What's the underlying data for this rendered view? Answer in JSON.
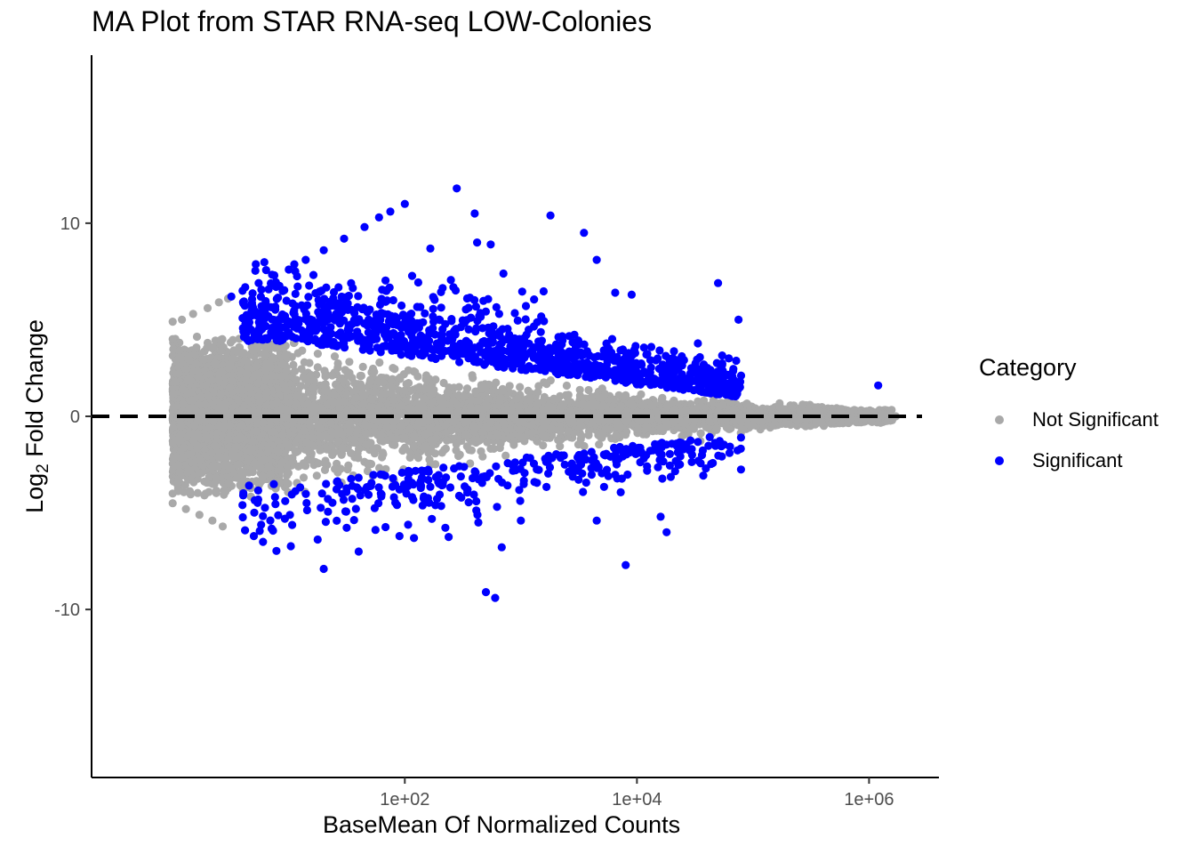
{
  "chart_data": {
    "type": "scatter",
    "title": "MA Plot from STAR RNA-seq LOW-Colonies",
    "xlabel": "BaseMean Of Normalized Counts",
    "ylabel_base": "Log",
    "ylabel_sub": "2",
    "ylabel_rest": " Fold Change",
    "x_scale": "log10",
    "xlim": [
      0.2,
      4000000
    ],
    "ylim": [
      -18.7,
      18.7
    ],
    "x_ticks": [
      100,
      10000,
      1000000
    ],
    "x_tick_labels": [
      "1e+02",
      "1e+04",
      "1e+06"
    ],
    "y_ticks": [
      -10,
      0,
      10
    ],
    "y_tick_labels": [
      "-10",
      "0",
      "10"
    ],
    "hline": {
      "y": 0,
      "style": "dashed",
      "color": "#000000"
    },
    "grid": false,
    "legend_position": "right",
    "legend_title": "Category",
    "series": [
      {
        "name": "Not Significant",
        "color": "#a9a9a9",
        "summary": "dense cloud, roughly |y| < 4 at low counts narrowing to |y| < 0.5 above 1e+05",
        "points": [
          [
            1.0,
            4.9
          ],
          [
            1.2,
            5.0
          ],
          [
            1.5,
            5.3
          ],
          [
            2.0,
            5.6
          ],
          [
            2.5,
            5.9
          ],
          [
            3.0,
            6.1
          ],
          [
            1.0,
            -4.5
          ],
          [
            1.3,
            -4.8
          ],
          [
            1.7,
            -5.1
          ],
          [
            2.2,
            -5.4
          ],
          [
            2.7,
            -5.7
          ],
          [
            1.0,
            4.0
          ],
          [
            1.0,
            -4.0
          ],
          [
            2.0,
            3.8
          ],
          [
            3.0,
            -3.5
          ],
          [
            5.0,
            3.4
          ],
          [
            4.0,
            -3.4
          ],
          [
            200000,
            0.2
          ],
          [
            300000,
            0.3
          ],
          [
            400000,
            0.2
          ],
          [
            600000,
            0.1
          ],
          [
            900000,
            0.1
          ],
          [
            1300000,
            0.1
          ],
          [
            1700000,
            0.0
          ],
          [
            250000,
            -0.2
          ],
          [
            350000,
            -0.3
          ],
          [
            500000,
            -0.2
          ],
          [
            700000,
            -0.1
          ]
        ]
      },
      {
        "name": "Significant",
        "color": "#0000ff",
        "summary": "points above and below the grey cloud, most between 10 and 1e+05 counts",
        "points": [
          [
            3.2,
            6.2
          ],
          [
            4.0,
            6.5
          ],
          [
            5.5,
            6.9
          ],
          [
            7.5,
            7.3
          ],
          [
            10,
            7.6
          ],
          [
            14,
            8.1
          ],
          [
            20,
            8.6
          ],
          [
            30,
            9.2
          ],
          [
            45,
            9.8
          ],
          [
            60,
            10.3
          ],
          [
            75,
            10.6
          ],
          [
            100,
            11.0
          ],
          [
            4.2,
            -5.9
          ],
          [
            5.0,
            -6.2
          ],
          [
            6.0,
            -6.5
          ],
          [
            280,
            11.8
          ],
          [
            400,
            10.5
          ],
          [
            1800,
            10.4
          ],
          [
            3500,
            9.5
          ],
          [
            420,
            9.0
          ],
          [
            550,
            8.9
          ],
          [
            4500,
            8.1
          ],
          [
            6500,
            6.4
          ],
          [
            9000,
            6.3
          ],
          [
            50000,
            6.9
          ],
          [
            75000,
            5.0
          ],
          [
            1200000,
            1.6
          ],
          [
            16000,
            -5.2
          ],
          [
            8000,
            -7.7
          ],
          [
            600,
            -9.4
          ],
          [
            500,
            -9.1
          ],
          [
            18000,
            -6.0
          ],
          [
            40,
            -7.0
          ],
          [
            20,
            -7.9
          ],
          [
            90,
            -6.2
          ],
          [
            120,
            -6.3
          ],
          [
            430,
            -5.5
          ],
          [
            1000,
            -5.4
          ],
          [
            4500,
            -5.4
          ]
        ]
      }
    ]
  }
}
